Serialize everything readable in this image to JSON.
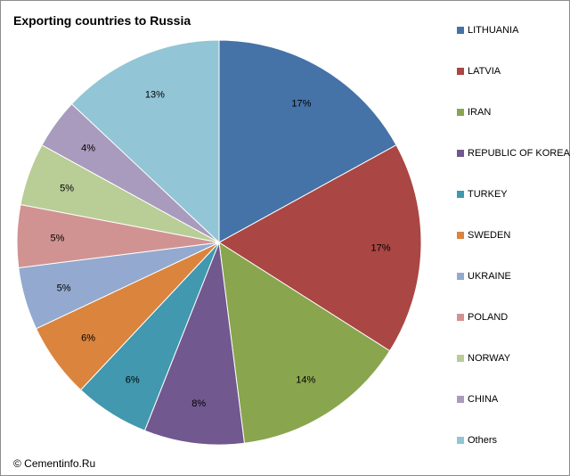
{
  "chart_data": {
    "type": "pie",
    "title": "Exporting countries to Russia",
    "slices": [
      {
        "name": "LITHUANIA",
        "value": 17,
        "label": "17%",
        "color": "#4572A7"
      },
      {
        "name": "LATVIA",
        "value": 17,
        "label": "17%",
        "color": "#AA4643"
      },
      {
        "name": "IRAN",
        "value": 14,
        "label": "14%",
        "color": "#89A54E"
      },
      {
        "name": "REPUBLIC OF KOREA",
        "value": 8,
        "label": "8%",
        "color": "#71588F"
      },
      {
        "name": "TURKEY",
        "value": 6,
        "label": "6%",
        "color": "#4198AF"
      },
      {
        "name": "SWEDEN",
        "value": 6,
        "label": "6%",
        "color": "#DB843D"
      },
      {
        "name": "UKRAINE",
        "value": 5,
        "label": "5%",
        "color": "#93A9CF"
      },
      {
        "name": "POLAND",
        "value": 5,
        "label": "5%",
        "color": "#D19392"
      },
      {
        "name": "NORWAY",
        "value": 5,
        "label": "5%",
        "color": "#B9CD96"
      },
      {
        "name": "CHINA",
        "value": 4,
        "label": "4%",
        "color": "#A99BBD"
      },
      {
        "name": "Others",
        "value": 13,
        "label": "13%",
        "color": "#92C5D5"
      }
    ],
    "legend_position": "right"
  },
  "footer": {
    "copyright": "© Cementinfo.Ru"
  }
}
